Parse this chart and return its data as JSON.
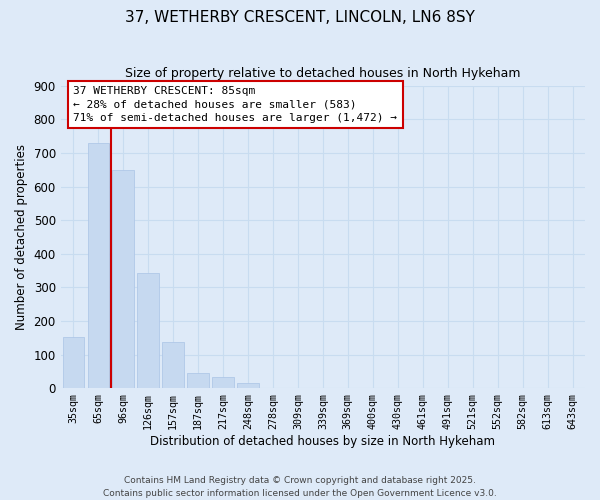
{
  "title1": "37, WETHERBY CRESCENT, LINCOLN, LN6 8SY",
  "title2": "Size of property relative to detached houses in North Hykeham",
  "xlabel": "Distribution of detached houses by size in North Hykeham",
  "ylabel": "Number of detached properties",
  "categories": [
    "35sqm",
    "65sqm",
    "96sqm",
    "126sqm",
    "157sqm",
    "187sqm",
    "217sqm",
    "248sqm",
    "278sqm",
    "309sqm",
    "339sqm",
    "369sqm",
    "400sqm",
    "430sqm",
    "461sqm",
    "491sqm",
    "521sqm",
    "552sqm",
    "582sqm",
    "613sqm",
    "643sqm"
  ],
  "values": [
    152,
    730,
    648,
    342,
    138,
    45,
    32,
    14,
    0,
    0,
    0,
    0,
    0,
    0,
    0,
    0,
    0,
    0,
    0,
    0,
    0
  ],
  "bar_color": "#c6d9f0",
  "bar_edge_color": "#b0c8e8",
  "grid_color": "#c8dcf0",
  "background_color": "#deeaf8",
  "vline_color": "#cc0000",
  "vline_x_index": 1.5,
  "annotation_line1": "37 WETHERBY CRESCENT: 85sqm",
  "annotation_line2": "← 28% of detached houses are smaller (583)",
  "annotation_line3": "71% of semi-detached houses are larger (1,472) →",
  "annotation_box_color": "#ffffff",
  "annotation_box_edge": "#cc0000",
  "ylim": [
    0,
    900
  ],
  "yticks": [
    0,
    100,
    200,
    300,
    400,
    500,
    600,
    700,
    800,
    900
  ],
  "footer1": "Contains HM Land Registry data © Crown copyright and database right 2025.",
  "footer2": "Contains public sector information licensed under the Open Government Licence v3.0."
}
